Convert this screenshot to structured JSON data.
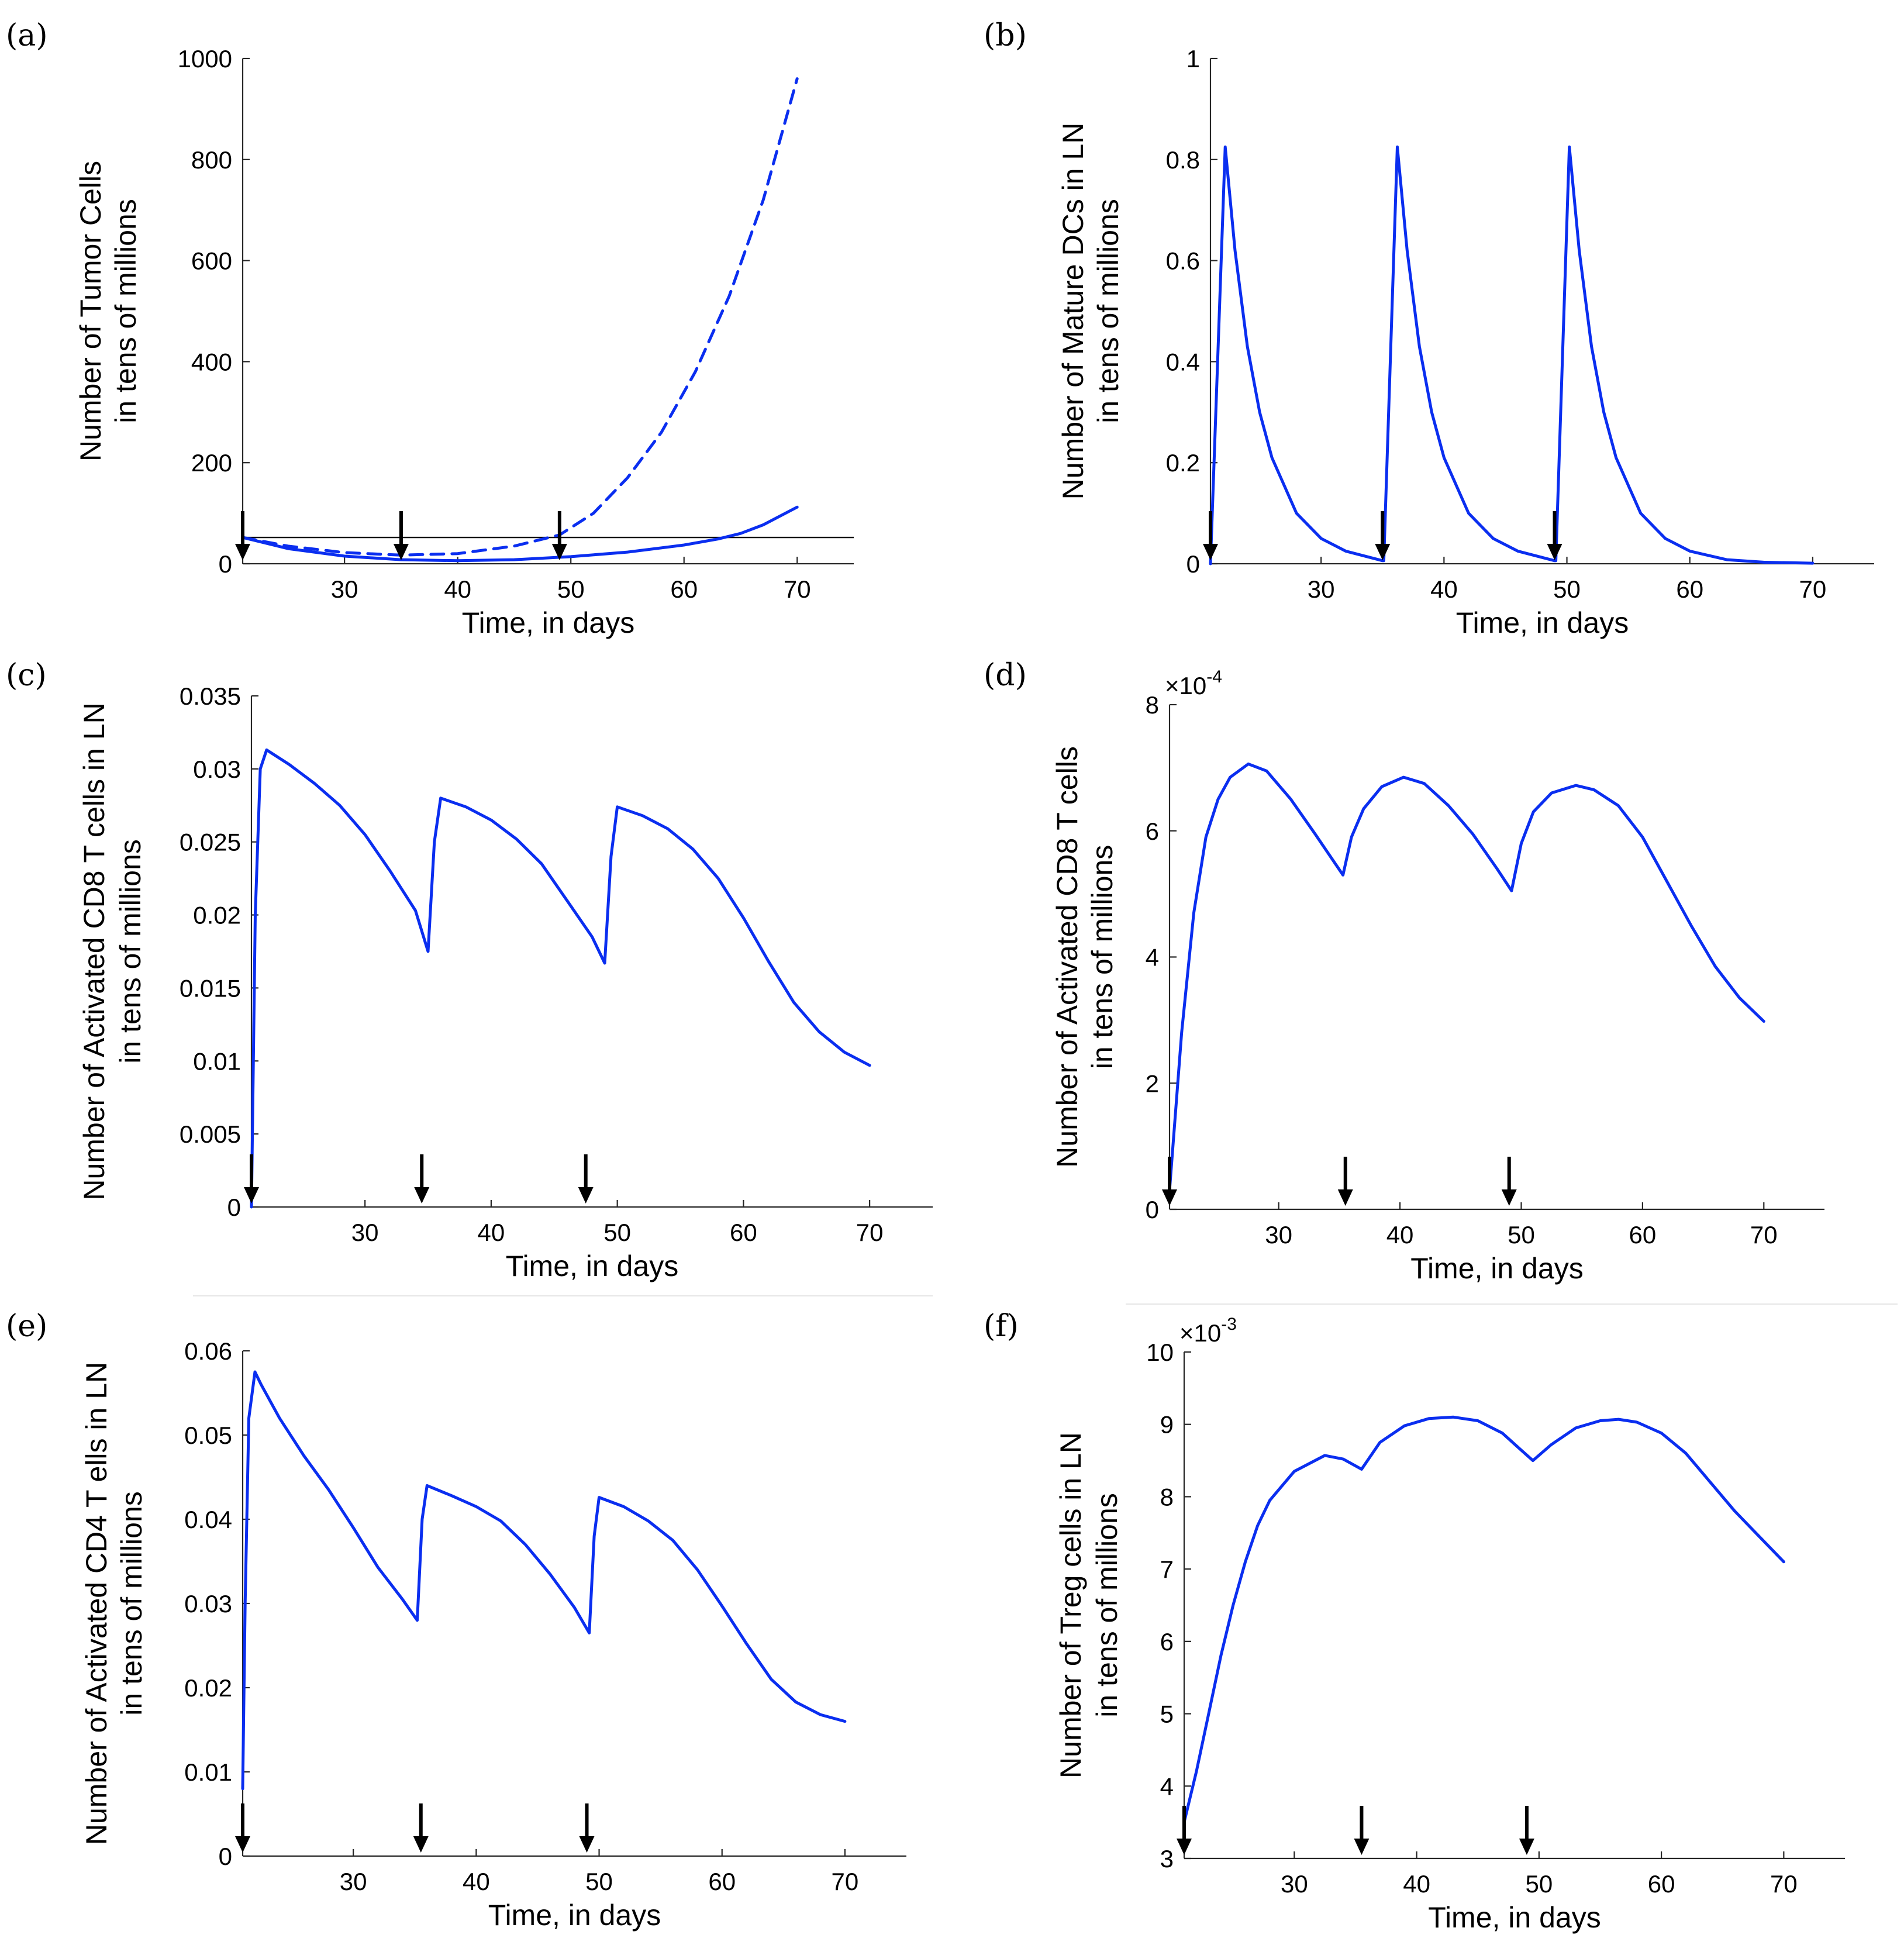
{
  "chart_data": [
    {
      "panel": "(a)",
      "type": "line",
      "ylabel": [
        "Number of Tumor Cells",
        "in tens of millions"
      ],
      "xlabel": "Time, in days",
      "xlim": [
        21,
        75
      ],
      "ylim": [
        0,
        1000
      ],
      "xticks": [
        30,
        40,
        50,
        60,
        70
      ],
      "yticks": [
        0,
        200,
        400,
        600,
        800,
        1000
      ],
      "tick_labels_x": [
        "30",
        "40",
        "50",
        "60",
        "70"
      ],
      "tick_labels_y": [
        "0",
        "200",
        "400",
        "600",
        "800",
        "1000"
      ],
      "exponent": "",
      "reference_line": 52,
      "arrows": [
        21,
        35,
        49
      ],
      "series": [
        {
          "style": "solid",
          "x": [
            21,
            25,
            30,
            35,
            40,
            45,
            50,
            55,
            60,
            63,
            65,
            67,
            70
          ],
          "y": [
            52,
            30,
            15,
            8,
            6,
            8,
            14,
            23,
            37,
            49,
            60,
            77,
            112
          ]
        },
        {
          "style": "dashed",
          "x": [
            21,
            25,
            30,
            35,
            40,
            45,
            49,
            52,
            55,
            58,
            61,
            64,
            67,
            70
          ],
          "y": [
            52,
            35,
            22,
            17,
            20,
            35,
            57,
            100,
            170,
            260,
            380,
            530,
            720,
            960
          ]
        }
      ],
      "grid": false
    },
    {
      "panel": "(b)",
      "type": "line",
      "ylabel": [
        "Number of Mature DCs in LN",
        "in tens of millions"
      ],
      "xlabel": "Time, in days",
      "xlim": [
        21,
        75
      ],
      "ylim": [
        0,
        1
      ],
      "xticks": [
        30,
        40,
        50,
        60,
        70
      ],
      "yticks": [
        0,
        0.2,
        0.4,
        0.6,
        0.8,
        1
      ],
      "tick_labels_x": [
        "30",
        "40",
        "50",
        "60",
        "70"
      ],
      "tick_labels_y": [
        "0",
        "0.2",
        "0.4",
        "0.6",
        "0.8",
        "1"
      ],
      "exponent": "",
      "arrows": [
        21,
        35,
        49
      ],
      "series": [
        {
          "style": "solid",
          "x": [
            21,
            22.2,
            23,
            24,
            25,
            26,
            28,
            30,
            32,
            35,
            35.1,
            36.2,
            37,
            38,
            39,
            40,
            42,
            44,
            46,
            49,
            49.1,
            50.2,
            51,
            52,
            53,
            54,
            56,
            58,
            60,
            63,
            66,
            70
          ],
          "y": [
            0,
            0.825,
            0.62,
            0.43,
            0.3,
            0.21,
            0.1,
            0.05,
            0.025,
            0.006,
            0.006,
            0.825,
            0.62,
            0.43,
            0.3,
            0.21,
            0.1,
            0.05,
            0.025,
            0.006,
            0.006,
            0.825,
            0.62,
            0.43,
            0.3,
            0.21,
            0.1,
            0.05,
            0.025,
            0.008,
            0.003,
            0.001
          ]
        }
      ],
      "grid": false
    },
    {
      "panel": "(c)",
      "type": "line",
      "ylabel": [
        "Number of Activated CD8 T cells in LN",
        "in tens of millions"
      ],
      "xlabel": "Time, in days",
      "xlim": [
        21,
        75
      ],
      "ylim": [
        0,
        0.035
      ],
      "xticks": [
        30,
        40,
        50,
        60,
        70
      ],
      "yticks": [
        0,
        0.005,
        0.01,
        0.015,
        0.02,
        0.025,
        0.03,
        0.035
      ],
      "tick_labels_x": [
        "30",
        "40",
        "50",
        "60",
        "70"
      ],
      "tick_labels_y": [
        "0",
        "0.005",
        "0.01",
        "0.015",
        "0.02",
        "0.025",
        "0.03",
        "0.035"
      ],
      "exponent": "",
      "arrows": [
        21,
        34.5,
        47.5
      ],
      "series": [
        {
          "style": "solid",
          "x": [
            21,
            21.3,
            21.7,
            22.2,
            24,
            26,
            28,
            30,
            32,
            34,
            35,
            35.5,
            36,
            38,
            40,
            42,
            44,
            46,
            48,
            49,
            49.5,
            50,
            52,
            54,
            56,
            58,
            60,
            62,
            64,
            66,
            68,
            70
          ],
          "y": [
            0,
            0.02,
            0.03,
            0.0313,
            0.0303,
            0.029,
            0.0275,
            0.0255,
            0.023,
            0.0203,
            0.0175,
            0.025,
            0.028,
            0.0274,
            0.0265,
            0.0252,
            0.0235,
            0.021,
            0.0185,
            0.0167,
            0.024,
            0.0274,
            0.0268,
            0.0259,
            0.0245,
            0.0225,
            0.0198,
            0.0168,
            0.014,
            0.012,
            0.0106,
            0.0097
          ]
        }
      ],
      "grid": false
    },
    {
      "panel": "(d)",
      "type": "line",
      "ylabel": [
        "Number of Activated CD8 T cells",
        "in tens of millions"
      ],
      "xlabel": "Time, in days",
      "xlim": [
        21,
        75
      ],
      "ylim": [
        0,
        8
      ],
      "xticks": [
        30,
        40,
        50,
        60,
        70
      ],
      "yticks": [
        0,
        2,
        4,
        6,
        8
      ],
      "tick_labels_x": [
        "30",
        "40",
        "50",
        "60",
        "70"
      ],
      "tick_labels_y": [
        "0",
        "2",
        "4",
        "6",
        "8"
      ],
      "exponent": "-4",
      "arrows": [
        21,
        35.5,
        49
      ],
      "series": [
        {
          "style": "solid",
          "x": [
            21,
            22,
            23,
            24,
            25,
            26,
            27.5,
            29,
            31,
            33,
            35.3,
            36,
            37,
            38.5,
            40.3,
            42,
            44,
            46,
            48,
            49.2,
            50,
            51,
            52.5,
            54.5,
            56,
            58,
            60,
            62,
            64,
            66,
            68,
            70
          ],
          "y": [
            0.3,
            2.8,
            4.7,
            5.9,
            6.5,
            6.85,
            7.06,
            6.95,
            6.5,
            5.95,
            5.3,
            5.9,
            6.35,
            6.7,
            6.85,
            6.75,
            6.4,
            5.95,
            5.4,
            5.05,
            5.8,
            6.3,
            6.6,
            6.72,
            6.65,
            6.4,
            5.9,
            5.2,
            4.5,
            3.85,
            3.35,
            2.98
          ]
        }
      ],
      "grid": false
    },
    {
      "panel": "(e)",
      "type": "line",
      "ylabel": [
        "Number of Activated CD4 T ells in LN",
        "in tens of millions"
      ],
      "xlabel": "Time, in days",
      "xlim": [
        21,
        75
      ],
      "ylim": [
        0,
        0.06
      ],
      "xticks": [
        30,
        40,
        50,
        60,
        70
      ],
      "yticks": [
        0,
        0.01,
        0.02,
        0.03,
        0.04,
        0.05,
        0.06
      ],
      "tick_labels_x": [
        "30",
        "40",
        "50",
        "60",
        "70"
      ],
      "tick_labels_y": [
        "0",
        "0.01",
        "0.02",
        "0.03",
        "0.04",
        "0.05",
        "0.06"
      ],
      "exponent": "",
      "arrows": [
        21,
        35.5,
        49
      ],
      "series": [
        {
          "style": "solid",
          "x": [
            21,
            21.2,
            21.5,
            22,
            22.5,
            24,
            26,
            28,
            30,
            32,
            34,
            35.2,
            35.6,
            36,
            38,
            40,
            42,
            44,
            46,
            48,
            49.2,
            49.6,
            50,
            52,
            54,
            56,
            58,
            60,
            62,
            64,
            66,
            68,
            70
          ],
          "y": [
            0.008,
            0.03,
            0.052,
            0.0575,
            0.056,
            0.052,
            0.0475,
            0.0435,
            0.039,
            0.0343,
            0.0305,
            0.028,
            0.04,
            0.044,
            0.0428,
            0.0415,
            0.0398,
            0.037,
            0.0335,
            0.0295,
            0.0265,
            0.038,
            0.0426,
            0.0415,
            0.0398,
            0.0375,
            0.034,
            0.0297,
            0.0252,
            0.021,
            0.0183,
            0.0168,
            0.016
          ]
        }
      ],
      "grid": false
    },
    {
      "panel": "(f)",
      "type": "line",
      "ylabel": [
        "Number of Treg cells in LN",
        "in tens of millions"
      ],
      "xlabel": "Time, in days",
      "xlim": [
        21,
        75
      ],
      "ylim": [
        3,
        10
      ],
      "xticks": [
        30,
        40,
        50,
        60,
        70
      ],
      "yticks": [
        3,
        4,
        5,
        6,
        7,
        8,
        9,
        10
      ],
      "tick_labels_x": [
        "30",
        "40",
        "50",
        "60",
        "70"
      ],
      "tick_labels_y": [
        "3",
        "4",
        "5",
        "6",
        "7",
        "8",
        "9",
        "10"
      ],
      "exponent": "-3",
      "arrows": [
        21,
        35.5,
        49
      ],
      "series": [
        {
          "style": "solid",
          "x": [
            21,
            22,
            23,
            24,
            25,
            26,
            27,
            28,
            30,
            32.5,
            34,
            35.5,
            37,
            39,
            41,
            43,
            45,
            47,
            48.5,
            49.5,
            51,
            53,
            55,
            56.5,
            58,
            60,
            62,
            64,
            66,
            68,
            70
          ],
          "y": [
            3.5,
            4.2,
            5.0,
            5.8,
            6.5,
            7.1,
            7.6,
            7.95,
            8.35,
            8.57,
            8.52,
            8.38,
            8.75,
            8.98,
            9.08,
            9.1,
            9.05,
            8.88,
            8.65,
            8.5,
            8.72,
            8.95,
            9.05,
            9.07,
            9.03,
            8.88,
            8.6,
            8.2,
            7.8,
            7.45,
            7.1
          ]
        }
      ],
      "grid": false
    }
  ]
}
